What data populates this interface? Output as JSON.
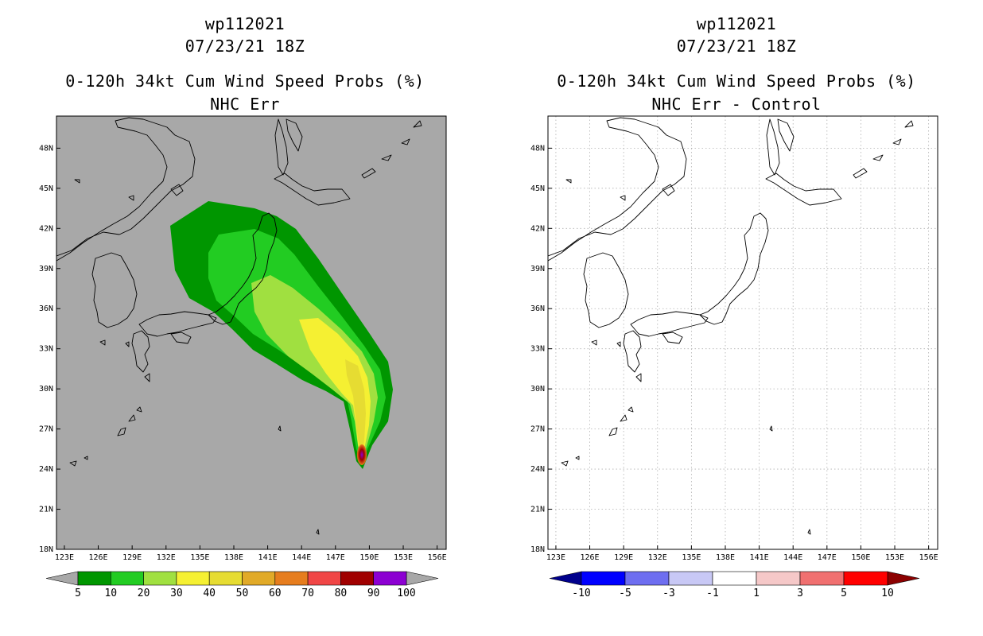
{
  "left_panel": {
    "title_line1": "wp112021",
    "title_line2": "07/23/21 18Z",
    "title_line3": "0-120h 34kt Cum Wind Speed Probs (%)",
    "title_line4": "NHC Err",
    "colorbar_labels": [
      "5",
      "10",
      "20",
      "30",
      "40",
      "50",
      "60",
      "70",
      "80",
      "90",
      "100"
    ],
    "colorbar_colors": [
      "#009600",
      "#22cc22",
      "#a0e040",
      "#f5f032",
      "#e6dc32",
      "#e1aa28",
      "#e67d1e",
      "#f04646",
      "#a00000",
      "#8c00d2"
    ],
    "undercolor": "#a8a8a8",
    "overcolor": "#a8a8a8"
  },
  "right_panel": {
    "title_line1": "wp112021",
    "title_line2": "07/23/21 18Z",
    "title_line3": "0-120h 34kt Cum Wind Speed Probs (%)",
    "title_line4": "NHC Err - Control",
    "colorbar_labels": [
      "-10",
      "-5",
      "-3",
      "-1",
      "1",
      "3",
      "5",
      "10"
    ],
    "colorbar_colors": [
      "#0000ff",
      "#6e6ef0",
      "#c8c8f5",
      "#ffffff",
      "#f5c8c8",
      "#f07070",
      "#ff0000"
    ],
    "undercolor": "#00008c",
    "overcolor": "#8c0000"
  },
  "map": {
    "lat_labels": [
      "18N",
      "21N",
      "24N",
      "27N",
      "30N",
      "33N",
      "36N",
      "39N",
      "42N",
      "45N",
      "48N"
    ],
    "lon_labels": [
      "123E",
      "126E",
      "129E",
      "132E",
      "135E",
      "138E",
      "141E",
      "144E",
      "147E",
      "150E",
      "153E",
      "156E"
    ],
    "background_left": "#a8a8a8",
    "background_right": "#ffffff"
  },
  "probability_field": {
    "peak_location": {
      "lon": 149.8,
      "lat": 24.6
    },
    "bands": [
      {
        "level": 5,
        "color": "#009600"
      },
      {
        "level": 10,
        "color": "#22cc22"
      },
      {
        "level": 20,
        "color": "#a0e040"
      },
      {
        "level": 30,
        "color": "#f5f032"
      },
      {
        "level": 40,
        "color": "#e6dc32"
      },
      {
        "level": 80,
        "color": "#a00000"
      },
      {
        "level": 90,
        "color": "#8c00d2"
      }
    ]
  }
}
